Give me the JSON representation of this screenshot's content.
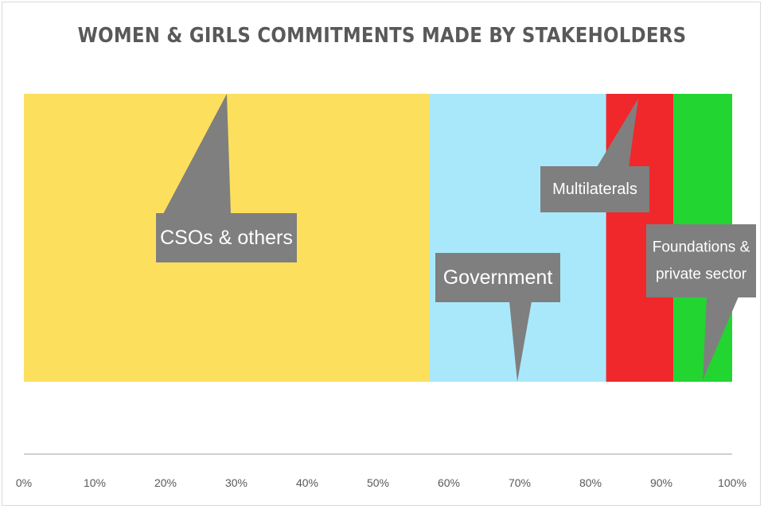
{
  "chart_data": {
    "type": "bar",
    "orientation": "horizontal-stacked-100",
    "title": "WOMEN & GIRLS COMMITMENTS MADE BY STAKEHOLDERS",
    "xlim": [
      0,
      100
    ],
    "x_ticks": [
      "0%",
      "10%",
      "20%",
      "30%",
      "40%",
      "50%",
      "60%",
      "70%",
      "80%",
      "90%",
      "100%"
    ],
    "series": [
      {
        "name": "CSOs & others",
        "value": 57.3,
        "color": "#FDDF5E"
      },
      {
        "name": "Government",
        "value": 24.9,
        "color": "#A9E8FB"
      },
      {
        "name": "Multilaterals",
        "value": 9.5,
        "color": "#F0282B"
      },
      {
        "name": "Foundations & private sector",
        "value": 8.3,
        "color": "#22D531"
      }
    ],
    "callouts": [
      {
        "series": "CSOs & others",
        "lines": [
          "CSOs & others"
        ]
      },
      {
        "series": "Government",
        "lines": [
          "Government"
        ]
      },
      {
        "series": "Multilaterals",
        "lines": [
          "Multilaterals"
        ]
      },
      {
        "series": "Foundations & private sector",
        "lines": [
          "Foundations &",
          "private sector"
        ]
      }
    ],
    "legend": "none",
    "grid": false
  }
}
